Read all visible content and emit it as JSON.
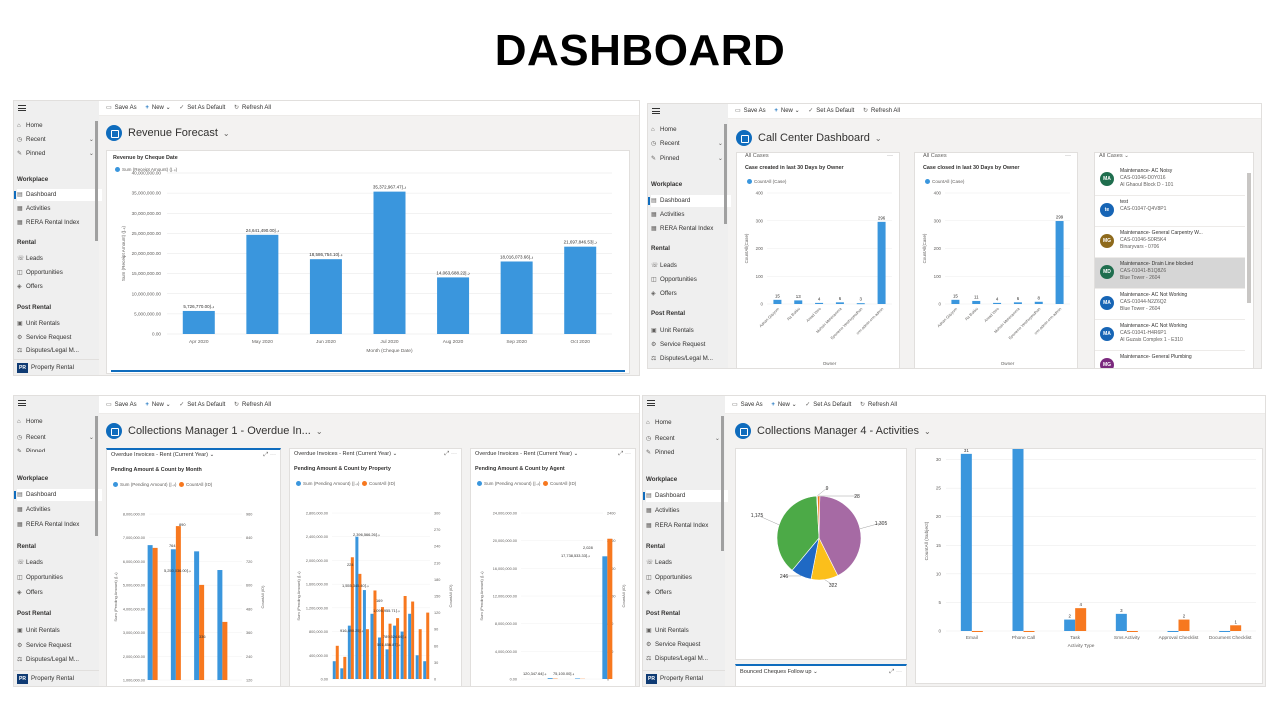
{
  "page": {
    "title": "DASHBOARD"
  },
  "nav": {
    "home": "Home",
    "recent": "Recent",
    "pinned": "Pinned",
    "workplace": "Workplace",
    "dashboard": "Dashboard",
    "activities": "Activities",
    "rera": "RERA Rental Index",
    "rental": "Rental",
    "leads": "Leads",
    "opportunities": "Opportunities",
    "offers": "Offers",
    "post_rental": "Post Rental",
    "unit_rentals": "Unit Rentals",
    "service_request": "Service Request",
    "disputes": "Disputes/Legal M...",
    "area_badge": "PR",
    "area_name": "Property Rental"
  },
  "commands": {
    "save_as": "Save As",
    "new": "New",
    "set_default": "Set As Default",
    "refresh": "Refresh All"
  },
  "panel1": {
    "dashboard_name": "Revenue Forecast",
    "chart_title": "Revenue by Cheque Date",
    "legend": "Sum (Receipt Amount) (د.إ)",
    "ylabel": "Sum (Receipt Amount) (د.إ)",
    "xlabel": "Month (Cheque Date)"
  },
  "panel2": {
    "dashboard_name": "Call Center Dashboard",
    "tab_all_cases": "All Cases",
    "c1_title": "Case created in last 30 Days by Owner",
    "c2_title": "Case closed in last 30 Days by Owner",
    "legend": "CountAll (Case)",
    "ylabel": "CountAll(Case)",
    "xlabel": "Owner",
    "list": [
      {
        "initials": "MA",
        "color": "#1f6e4e",
        "line1": "Maintenance- AC Noisy",
        "line2": "CAS-01046-D0Y016",
        "line3": "Al Ghaoul Block D - 101"
      },
      {
        "initials": "te",
        "color": "#1765b5",
        "line1": "test",
        "line2": "CAS-01047-Q4V8P1",
        "line3": ""
      },
      {
        "initials": "MG",
        "color": "#8e6a1c",
        "line1": "Maintenance- General Carpentry W...",
        "line2": "CAS-01046-S0R5K4",
        "line3": "Binaryvars - 0706"
      },
      {
        "initials": "MD",
        "color": "#1f6e4e",
        "line1": "Maintenance- Drain Line blocked",
        "line2": "CAS-01041-B1Q8Z6",
        "line3": "Blue Tower - 2604"
      },
      {
        "initials": "MA",
        "color": "#1765b5",
        "line1": "Maintenance- AC Not Working",
        "line2": "CAS-01044-N2Z6Q2",
        "line3": "Blue Tower - 2604"
      },
      {
        "initials": "MA",
        "color": "#1765b5",
        "line1": "Maintenance- AC Not Working",
        "line2": "CAS-01041-H4R6P1",
        "line3": "Al Guzais Complex 1 - E310"
      },
      {
        "initials": "MG",
        "color": "#7b2a7e",
        "line1": "Maintenance- General Plumbing",
        "line2": "",
        "line3": ""
      }
    ]
  },
  "panel3": {
    "dashboard_name": "Collections Manager 1 - Overdue In...",
    "view_title": "Overdue Invoices - Rent (Current Year)",
    "c1_title": "Pending Amount & Count by Month",
    "c2_title": "Pending Amount & Count by Property",
    "c3_title": "Pending Amount & Count by Agent",
    "legend_sum": "Sum (Pending Amount) (د.إ)",
    "legend_count": "CountAll (ID)",
    "ylabel": "Sum (Pending Amount) (د.إ)",
    "ylabel2": "CountAll (ID)"
  },
  "panel4": {
    "dashboard_name": "Collections Manager 4 - Activities",
    "bottom_view": "Bounced Cheques Follow up",
    "ylabel": "CountAll (Subject)",
    "xlabel": "Activity Type"
  },
  "colors": {
    "blue": "#3a96dd",
    "orange": "#f7781f",
    "accent": "#0f6cbd"
  },
  "chart_data": [
    {
      "type": "bar",
      "title": "Revenue by Cheque Date",
      "xlabel": "Month (Cheque Date)",
      "ylabel": "Sum (Receipt Amount) (د.إ)",
      "categories": [
        "Apr 2020",
        "May 2020",
        "Jun 2020",
        "Jul 2020",
        "Aug 2020",
        "Sep 2020",
        "Oct 2020"
      ],
      "values": [
        5726770,
        24641490,
        18586754.1,
        35372967.47,
        14063688.22,
        18016073.66,
        21697846.53
      ],
      "labels": [
        "5,726,770.00د.إ",
        "24,641,490.00د.إ",
        "18,586,754.10د.إ",
        "35,372,967.47د.إ",
        "14,063,688.22د.إ",
        "18,016,073.66د.إ",
        "21,697,846.53د.إ"
      ],
      "yticks": [
        "0.00",
        "5,000,000.00",
        "10,000,000.00",
        "15,000,000.00",
        "20,000,000.00",
        "25,000,000.00",
        "30,000,000.00",
        "35,000,000.00",
        "40,000,000.00"
      ],
      "ylim": [
        0,
        40000000
      ]
    },
    {
      "type": "bar",
      "title": "Case created in last 30 Days by Owner",
      "xlabel": "Owner",
      "ylabel": "CountAll(Case)",
      "categories": [
        "Adnan Qayyum",
        "Ra Bukku",
        "Antad Vero",
        "Mohsin Mehtnamma",
        "Eponemo Vesthuyesdhan",
        "crm.admin.crm.admin"
      ],
      "values": [
        15,
        13,
        4,
        6,
        3,
        296
      ],
      "yticks": [
        "0",
        "100",
        "200",
        "300",
        "400"
      ],
      "ylim": [
        0,
        400
      ]
    },
    {
      "type": "bar",
      "title": "Case closed in last 30 Days by Owner",
      "xlabel": "Owner",
      "ylabel": "CountAll(Case)",
      "categories": [
        "Adnan Qayyum",
        "Ra Bukku",
        "Antad Vero",
        "Mohsin Mehtnamma",
        "Eponemo Vesthuyesdhan",
        "crm.admin.crm.admin"
      ],
      "values": [
        15,
        11,
        4,
        6,
        8,
        299
      ],
      "yticks": [
        "0",
        "100",
        "200",
        "300",
        "400"
      ],
      "ylim": [
        0,
        400
      ]
    },
    {
      "type": "bar",
      "title": "Pending Amount & Count by Month",
      "series": [
        {
          "name": "Sum (Pending Amount) (د.إ)",
          "values": [
            6500000,
            6300000,
            6200000,
            5300000
          ]
        },
        {
          "name": "CountAll (ID)",
          "values": [
            764,
            890,
            550,
            336
          ]
        }
      ],
      "data_labels": [
        "764",
        "890",
        "5,250,036.00د.إ",
        "336",
        "1,226,644.85د.إ"
      ],
      "yticks": [
        "1,000,000.00",
        "2,000,000.00",
        "3,000,000.00",
        "4,000,000.00",
        "5,000,000.00",
        "6,000,000.00",
        "7,000,000.00",
        "8,000,000.00"
      ],
      "y2ticks": [
        "120",
        "240",
        "360",
        "480",
        "600",
        "720",
        "840",
        "960"
      ]
    },
    {
      "type": "bar",
      "title": "Pending Amount & Count by Property",
      "series": [
        {
          "name": "Sum (Pending Amount) (د.إ)",
          "values": [
            300000,
            180000,
            900000,
            2400000,
            1500000,
            1100000,
            700000,
            500000,
            900000,
            800000,
            1100000,
            400000,
            300000
          ]
        },
        {
          "name": "CountAll (ID)",
          "values": [
            60,
            40,
            220,
            190,
            90,
            160,
            130,
            100,
            110,
            150,
            140,
            90,
            120
          ]
        }
      ],
      "data_labels": [
        "2,396,566.26د.إ",
        "224",
        "1,555,345.40د.إ",
        "169",
        "1,095,955.71د.إ",
        "916,490.25د.إ",
        "789,524.66د.إ",
        "501,856.87د.إ"
      ],
      "yticks": [
        "0.00",
        "400,000.00",
        "800,000.00",
        "1,200,000.00",
        "1,600,000.00",
        "2,000,000.00",
        "2,400,000.00",
        "2,800,000.00"
      ],
      "y2ticks": [
        "0",
        "30",
        "60",
        "90",
        "120",
        "150",
        "180",
        "210",
        "240",
        "270",
        "300"
      ]
    },
    {
      "type": "bar",
      "title": "Pending Amount & Count by Agent",
      "series": [
        {
          "name": "Sum (Pending Amount) (د.إ)",
          "values": [
            120347.64,
            75100,
            17738533
          ]
        },
        {
          "name": "CountAll (ID)",
          "values": [
            5,
            3,
            2028
          ]
        }
      ],
      "data_labels": [
        "120,347.64د.إ",
        "75,100.00د.إ",
        "17,738,533.33د.إ",
        "2,028"
      ],
      "yticks": [
        "0.00",
        "4,000,000.00",
        "8,000,000.00",
        "12,000,000.00",
        "16,000,000.00",
        "20,000,000.00",
        "24,000,000.00"
      ],
      "y2ticks": [
        "0",
        "400",
        "800",
        "1200",
        "1600",
        "2000",
        "2400"
      ]
    },
    {
      "type": "pie",
      "slices": [
        {
          "label": "1,305",
          "value": 1305,
          "color": "#a66aa4"
        },
        {
          "label": "322",
          "value": 322,
          "color": "#fbbf1b"
        },
        {
          "label": "246",
          "value": 246,
          "color": "#1f69c4"
        },
        {
          "label": "1,175",
          "value": 1175,
          "color": "#4caa47"
        },
        {
          "label": "9",
          "value": 9,
          "color": "#7e6fa7"
        },
        {
          "label": "28",
          "value": 28,
          "color": "#f07a1e"
        }
      ]
    },
    {
      "type": "bar",
      "xlabel": "Activity Type",
      "ylabel": "CountAll (Subject)",
      "categories": [
        "Email",
        "Phone Call",
        "Task",
        "Sms Activity",
        "Approval Checklist",
        "Document Checklist"
      ],
      "series": [
        {
          "name": "blue",
          "values": [
            31,
            35,
            2,
            3,
            0,
            0
          ]
        },
        {
          "name": "orange",
          "values": [
            0,
            0,
            4,
            0,
            2,
            1
          ]
        }
      ],
      "labels_blue": [
        "31",
        "",
        "2",
        "3",
        "",
        ""
      ],
      "labels_orange": [
        "",
        "",
        "4",
        "",
        "2",
        "1"
      ],
      "yticks": [
        "0",
        "5",
        "10",
        "15",
        "20",
        "25",
        "30",
        "35"
      ],
      "ylim": [
        0,
        35
      ]
    }
  ]
}
